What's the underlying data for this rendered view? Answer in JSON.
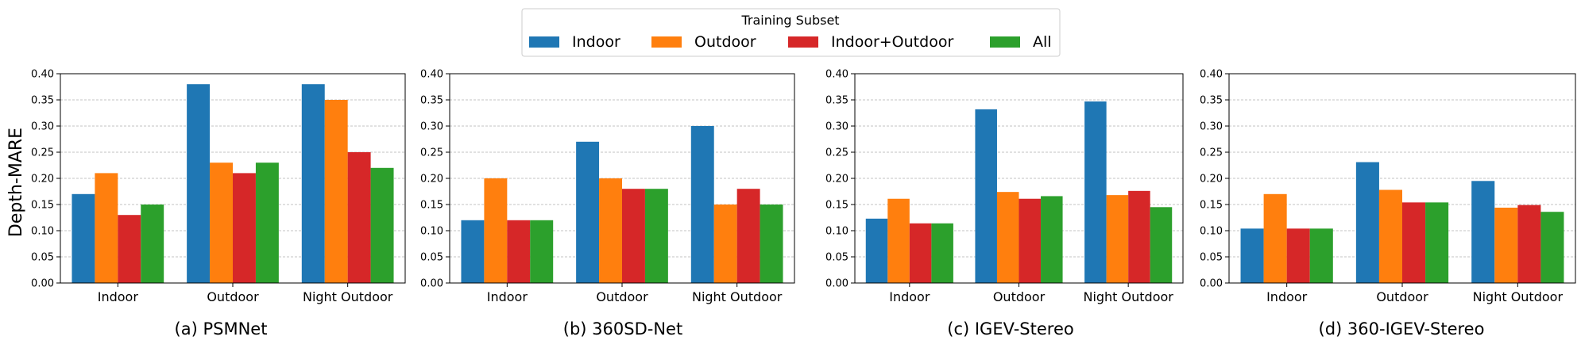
{
  "legend": {
    "title": "Training Subset",
    "entries": [
      {
        "name": "Indoor",
        "color": "#1f77b4"
      },
      {
        "name": "Outdoor",
        "color": "#ff7f0e"
      },
      {
        "name": "Indoor+Outdoor",
        "color": "#d62728"
      },
      {
        "name": "All",
        "color": "#2ca02c"
      }
    ]
  },
  "ylabel": "Depth-MARE",
  "chart_data": [
    {
      "type": "bar",
      "title": "(a) PSMNet",
      "xlabel": "",
      "ylabel": "Depth-MARE",
      "ylim": [
        0,
        0.4
      ],
      "yticks": [
        "0.00",
        "0.05",
        "0.10",
        "0.15",
        "0.20",
        "0.25",
        "0.30",
        "0.35",
        "0.40"
      ],
      "categories": [
        "Indoor",
        "Outdoor",
        "Night Outdoor"
      ],
      "series": [
        {
          "name": "Indoor",
          "values": [
            0.17,
            0.38,
            0.38
          ]
        },
        {
          "name": "Outdoor",
          "values": [
            0.21,
            0.23,
            0.35
          ]
        },
        {
          "name": "Indoor+Outdoor",
          "values": [
            0.13,
            0.21,
            0.25
          ]
        },
        {
          "name": "All",
          "values": [
            0.15,
            0.23,
            0.22
          ]
        }
      ],
      "grid": "y"
    },
    {
      "type": "bar",
      "title": "(b) 360SD-Net",
      "xlabel": "",
      "ylabel": "",
      "ylim": [
        0,
        0.4
      ],
      "yticks": [
        "0.00",
        "0.05",
        "0.10",
        "0.15",
        "0.20",
        "0.25",
        "0.30",
        "0.35",
        "0.40"
      ],
      "categories": [
        "Indoor",
        "Outdoor",
        "Night Outdoor"
      ],
      "series": [
        {
          "name": "Indoor",
          "values": [
            0.12,
            0.27,
            0.3
          ]
        },
        {
          "name": "Outdoor",
          "values": [
            0.2,
            0.2,
            0.15
          ]
        },
        {
          "name": "Indoor+Outdoor",
          "values": [
            0.12,
            0.18,
            0.18
          ]
        },
        {
          "name": "All",
          "values": [
            0.12,
            0.18,
            0.15
          ]
        }
      ],
      "grid": "y"
    },
    {
      "type": "bar",
      "title": "(c) IGEV-Stereo",
      "xlabel": "",
      "ylabel": "",
      "ylim": [
        0,
        0.4
      ],
      "yticks": [
        "0.00",
        "0.05",
        "0.10",
        "0.15",
        "0.20",
        "0.25",
        "0.30",
        "0.35",
        "0.40"
      ],
      "categories": [
        "Indoor",
        "Outdoor",
        "Night Outdoor"
      ],
      "series": [
        {
          "name": "Indoor",
          "values": [
            0.123,
            0.332,
            0.347
          ]
        },
        {
          "name": "Outdoor",
          "values": [
            0.161,
            0.174,
            0.168
          ]
        },
        {
          "name": "Indoor+Outdoor",
          "values": [
            0.114,
            0.161,
            0.176
          ]
        },
        {
          "name": "All",
          "values": [
            0.114,
            0.166,
            0.145
          ]
        }
      ],
      "grid": "y"
    },
    {
      "type": "bar",
      "title": "(d) 360-IGEV-Stereo",
      "xlabel": "",
      "ylabel": "",
      "ylim": [
        0,
        0.4
      ],
      "yticks": [
        "0.00",
        "0.05",
        "0.10",
        "0.15",
        "0.20",
        "0.25",
        "0.30",
        "0.35",
        "0.40"
      ],
      "categories": [
        "Indoor",
        "Outdoor",
        "Night Outdoor"
      ],
      "series": [
        {
          "name": "Indoor",
          "values": [
            0.104,
            0.231,
            0.195
          ]
        },
        {
          "name": "Outdoor",
          "values": [
            0.17,
            0.178,
            0.144
          ]
        },
        {
          "name": "Indoor+Outdoor",
          "values": [
            0.104,
            0.154,
            0.149
          ]
        },
        {
          "name": "All",
          "values": [
            0.104,
            0.154,
            0.136
          ]
        }
      ],
      "grid": "y"
    }
  ]
}
